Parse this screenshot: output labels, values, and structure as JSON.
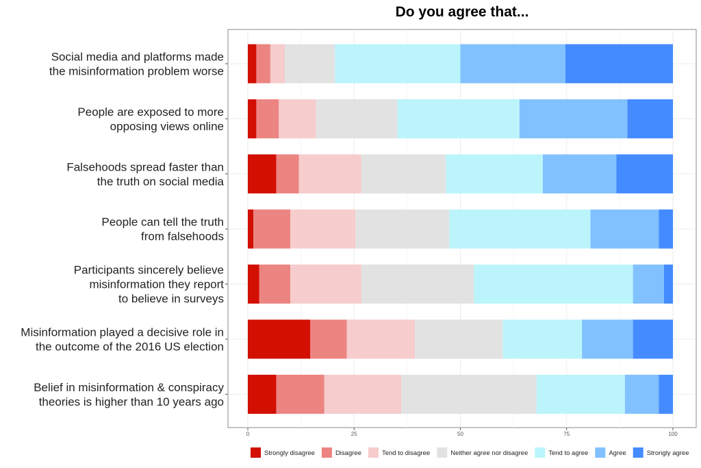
{
  "chart_data": {
    "type": "bar",
    "orientation": "horizontal",
    "stacked": true,
    "title": "Do you agree that...",
    "xlabel": "",
    "ylabel": "",
    "xlim": [
      0,
      100
    ],
    "xticks": [
      "0",
      "25",
      "50",
      "75",
      "100"
    ],
    "grid": true,
    "legend_position": "bottom",
    "categories": [
      [
        "Social media and platforms made",
        "the misinformation problem worse"
      ],
      [
        "People are exposed to more",
        "opposing views online"
      ],
      [
        "Falsehoods spread faster than",
        "the truth on social media"
      ],
      [
        "People can tell the truth",
        "from falsehoods"
      ],
      [
        "Participants sincerely believe",
        "misinformation they report",
        "to believe in surveys"
      ],
      [
        "Misinformation played a decisive role in",
        "the outcome of the 2016 US election"
      ],
      [
        "Belief in misinformation & conspiracy",
        "theories is higher than 10 years ago"
      ]
    ],
    "series": [
      {
        "name": "Strongly disagree",
        "color": "#d20f00",
        "values": [
          2.0,
          2.0,
          6.7,
          1.3,
          2.7,
          14.7,
          6.7
        ]
      },
      {
        "name": "Disagree",
        "color": "#ec8482",
        "values": [
          3.3,
          5.3,
          5.3,
          8.7,
          7.3,
          8.6,
          11.3
        ]
      },
      {
        "name": "Tend to disagree",
        "color": "#f6cccc",
        "values": [
          3.4,
          8.7,
          14.7,
          15.3,
          16.7,
          16.0,
          18.1
        ]
      },
      {
        "name": "Neither agree nor disagree",
        "color": "#e2e2e2",
        "values": [
          11.8,
          19.2,
          19.9,
          22.1,
          26.5,
          20.7,
          31.8
        ]
      },
      {
        "name": "Tend to agree",
        "color": "#bbf5fb",
        "values": [
          29.5,
          28.7,
          22.8,
          33.2,
          37.4,
          18.6,
          20.8
        ]
      },
      {
        "name": "Agree",
        "color": "#82c1ff",
        "values": [
          24.7,
          25.4,
          17.3,
          16.1,
          7.3,
          12.0,
          8.0
        ]
      },
      {
        "name": "Strongly agree",
        "color": "#448bff",
        "values": [
          25.3,
          10.7,
          13.3,
          3.3,
          2.1,
          9.4,
          3.3
        ]
      }
    ]
  }
}
